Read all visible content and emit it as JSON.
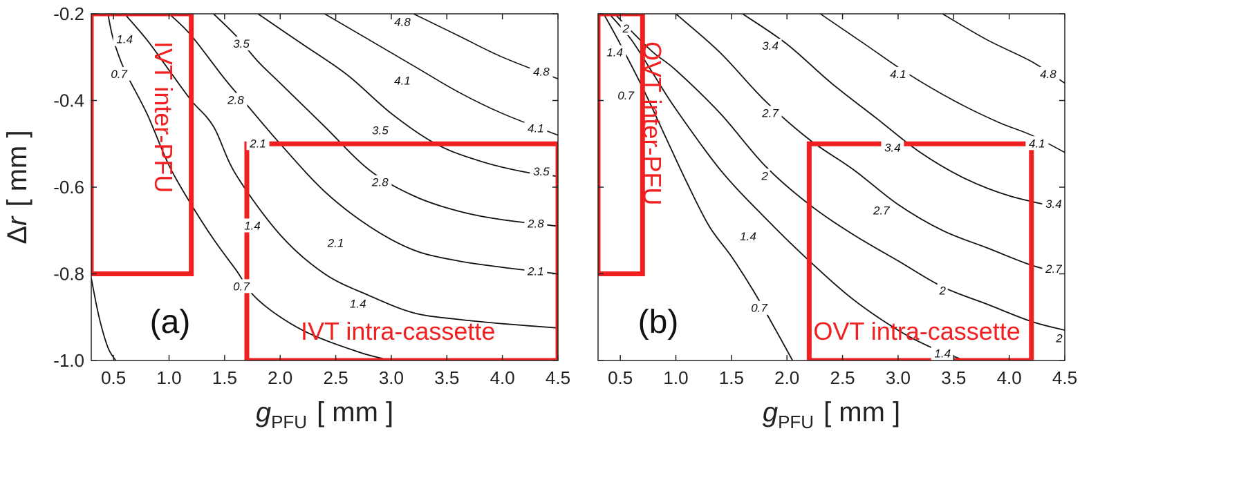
{
  "chart_data": [
    {
      "type": "contour",
      "panel_label": "(a)",
      "xlabel": {
        "symbol": "g",
        "subscript": "PFU",
        "unit": "[ mm ]"
      },
      "ylabel": {
        "symbol": "Δr",
        "unit": "[ mm ]"
      },
      "xlim": [
        0.3,
        4.5
      ],
      "ylim": [
        -1.0,
        -0.2
      ],
      "x_ticks": [
        "0.5",
        "1.0",
        "1.5",
        "2.0",
        "2.5",
        "3.0",
        "3.5",
        "4.0",
        "4.5"
      ],
      "y_ticks": [
        "-0.2",
        "-0.4",
        "-0.6",
        "-0.8",
        "-1.0"
      ],
      "contours": [
        {
          "level": "0.7",
          "points": [
            [
              0.3,
              -0.81
            ],
            [
              0.37,
              -0.9
            ],
            [
              0.45,
              -0.97
            ],
            [
              0.52,
              -1.0
            ]
          ]
        },
        {
          "level": "0.7",
          "points": [
            [
              0.45,
              -0.2
            ],
            [
              0.5,
              -0.26
            ],
            [
              0.6,
              -0.33
            ],
            [
              0.8,
              -0.43
            ],
            [
              1.0,
              -0.55
            ],
            [
              1.2,
              -0.64
            ],
            [
              1.4,
              -0.72
            ],
            [
              1.6,
              -0.79
            ],
            [
              1.8,
              -0.86
            ],
            [
              2.2,
              -0.93
            ],
            [
              2.7,
              -0.98
            ],
            [
              3.0,
              -1.0
            ]
          ]
        },
        {
          "level": "1.4",
          "points": [
            [
              0.6,
              -0.2
            ],
            [
              0.8,
              -0.26
            ],
            [
              1.0,
              -0.33
            ],
            [
              1.2,
              -0.4
            ],
            [
              1.4,
              -0.46
            ],
            [
              1.6,
              -0.57
            ],
            [
              2.0,
              -0.71
            ],
            [
              2.4,
              -0.8
            ],
            [
              2.8,
              -0.85
            ],
            [
              3.2,
              -0.89
            ],
            [
              3.6,
              -0.905
            ],
            [
              4.0,
              -0.915
            ],
            [
              4.5,
              -0.925
            ]
          ]
        },
        {
          "level": "2.1",
          "points": [
            [
              1.0,
              -0.2
            ],
            [
              1.2,
              -0.25
            ],
            [
              1.5,
              -0.35
            ],
            [
              1.7,
              -0.41
            ],
            [
              2.0,
              -0.5
            ],
            [
              2.4,
              -0.61
            ],
            [
              2.8,
              -0.69
            ],
            [
              3.2,
              -0.745
            ],
            [
              3.6,
              -0.77
            ],
            [
              4.0,
              -0.785
            ],
            [
              4.5,
              -0.8
            ]
          ]
        },
        {
          "level": "2.8",
          "points": [
            [
              1.4,
              -0.2
            ],
            [
              1.6,
              -0.25
            ],
            [
              1.8,
              -0.31
            ],
            [
              2.0,
              -0.36
            ],
            [
              2.4,
              -0.46
            ],
            [
              2.8,
              -0.56
            ],
            [
              3.2,
              -0.62
            ],
            [
              3.6,
              -0.655
            ],
            [
              4.0,
              -0.675
            ],
            [
              4.5,
              -0.69
            ]
          ]
        },
        {
          "level": "3.5",
          "points": [
            [
              1.8,
              -0.2
            ],
            [
              2.2,
              -0.27
            ],
            [
              2.6,
              -0.34
            ],
            [
              3.0,
              -0.43
            ],
            [
              3.4,
              -0.5
            ],
            [
              3.8,
              -0.54
            ],
            [
              4.2,
              -0.565
            ],
            [
              4.5,
              -0.575
            ]
          ]
        },
        {
          "level": "4.1",
          "points": [
            [
              2.4,
              -0.2
            ],
            [
              2.8,
              -0.26
            ],
            [
              3.2,
              -0.32
            ],
            [
              3.6,
              -0.38
            ],
            [
              4.0,
              -0.43
            ],
            [
              4.5,
              -0.48
            ]
          ]
        },
        {
          "level": "4.8",
          "points": [
            [
              3.2,
              -0.2
            ],
            [
              3.6,
              -0.25
            ],
            [
              4.0,
              -0.3
            ],
            [
              4.5,
              -0.35
            ]
          ]
        }
      ],
      "contour_labels": [
        {
          "text": "0.7",
          "x": 0.55,
          "y": -0.34
        },
        {
          "text": "1.4",
          "x": 0.6,
          "y": -0.26
        },
        {
          "text": "3.5",
          "x": 1.65,
          "y": -0.27
        },
        {
          "text": "4.8",
          "x": 3.1,
          "y": -0.22
        },
        {
          "text": "2.8",
          "x": 1.6,
          "y": -0.4
        },
        {
          "text": "4.1",
          "x": 3.1,
          "y": -0.355
        },
        {
          "text": "2.1",
          "x": 1.8,
          "y": -0.5
        },
        {
          "text": "3.5",
          "x": 2.9,
          "y": -0.47
        },
        {
          "text": "2.8",
          "x": 2.9,
          "y": -0.59
        },
        {
          "text": "1.4",
          "x": 1.75,
          "y": -0.69
        },
        {
          "text": "2.1",
          "x": 2.5,
          "y": -0.73
        },
        {
          "text": "0.7",
          "x": 1.65,
          "y": -0.83
        },
        {
          "text": "1.4",
          "x": 2.7,
          "y": -0.87
        },
        {
          "text": "4.8",
          "x": 4.35,
          "y": -0.335
        },
        {
          "text": "4.1",
          "x": 4.3,
          "y": -0.465
        },
        {
          "text": "3.5",
          "x": 4.35,
          "y": -0.565
        },
        {
          "text": "2.8",
          "x": 4.3,
          "y": -0.685
        },
        {
          "text": "2.1",
          "x": 4.3,
          "y": -0.795
        }
      ],
      "regions": [
        {
          "name": "IVT inter-PFU",
          "x0": 0.3,
          "x1": 1.2,
          "y0": -0.8,
          "y1": -0.2,
          "label_orientation": "vertical"
        },
        {
          "name": "IVT intra-cassette",
          "x0": 1.7,
          "x1": 4.5,
          "y0": -1.0,
          "y1": -0.5,
          "label_orientation": "horizontal"
        }
      ]
    },
    {
      "type": "contour",
      "panel_label": "(b)",
      "xlabel": {
        "symbol": "g",
        "subscript": "PFU",
        "unit": "[ mm ]"
      },
      "ylabel": {
        "symbol": "",
        "unit": ""
      },
      "xlim": [
        0.3,
        4.5
      ],
      "ylim": [
        -1.0,
        -0.2
      ],
      "x_ticks": [
        "0.5",
        "1.0",
        "1.5",
        "2.0",
        "2.5",
        "3.0",
        "3.5",
        "4.0",
        "4.5"
      ],
      "y_ticks": [],
      "contours": [
        {
          "level": "0.7",
          "points": [
            [
              0.35,
              -0.2
            ],
            [
              0.5,
              -0.27
            ],
            [
              0.7,
              -0.37
            ],
            [
              0.9,
              -0.48
            ],
            [
              1.1,
              -0.59
            ],
            [
              1.3,
              -0.69
            ],
            [
              1.5,
              -0.76
            ],
            [
              1.7,
              -0.84
            ],
            [
              1.9,
              -0.93
            ],
            [
              2.05,
              -1.0
            ]
          ]
        },
        {
          "level": "1.4",
          "points": [
            [
              0.4,
              -0.2
            ],
            [
              0.6,
              -0.26
            ],
            [
              0.8,
              -0.34
            ],
            [
              1.0,
              -0.42
            ],
            [
              1.4,
              -0.56
            ],
            [
              1.8,
              -0.67
            ],
            [
              2.2,
              -0.77
            ],
            [
              2.6,
              -0.86
            ],
            [
              3.0,
              -0.93
            ],
            [
              3.3,
              -0.97
            ],
            [
              3.6,
              -1.0
            ]
          ]
        },
        {
          "level": "2",
          "points": [
            [
              0.45,
              -0.2
            ],
            [
              0.6,
              -0.24
            ],
            [
              0.8,
              -0.29
            ],
            [
              1.0,
              -0.33
            ],
            [
              1.4,
              -0.43
            ],
            [
              1.8,
              -0.55
            ],
            [
              2.2,
              -0.64
            ],
            [
              2.6,
              -0.71
            ],
            [
              3.0,
              -0.77
            ],
            [
              3.4,
              -0.83
            ],
            [
              3.8,
              -0.87
            ],
            [
              4.2,
              -0.91
            ],
            [
              4.5,
              -0.93
            ]
          ]
        },
        {
          "level": "2.7",
          "points": [
            [
              1.0,
              -0.2
            ],
            [
              1.4,
              -0.29
            ],
            [
              1.8,
              -0.4
            ],
            [
              2.2,
              -0.49
            ],
            [
              2.6,
              -0.56
            ],
            [
              3.0,
              -0.64
            ],
            [
              3.4,
              -0.7
            ],
            [
              3.8,
              -0.74
            ],
            [
              4.2,
              -0.78
            ],
            [
              4.5,
              -0.8
            ]
          ]
        },
        {
          "level": "3.4",
          "points": [
            [
              1.6,
              -0.2
            ],
            [
              2.0,
              -0.27
            ],
            [
              2.4,
              -0.36
            ],
            [
              2.8,
              -0.44
            ],
            [
              3.2,
              -0.52
            ],
            [
              3.6,
              -0.58
            ],
            [
              4.0,
              -0.62
            ],
            [
              4.5,
              -0.65
            ]
          ]
        },
        {
          "level": "4.1",
          "points": [
            [
              2.3,
              -0.2
            ],
            [
              2.7,
              -0.27
            ],
            [
              3.1,
              -0.34
            ],
            [
              3.5,
              -0.4
            ],
            [
              3.9,
              -0.45
            ],
            [
              4.2,
              -0.48
            ],
            [
              4.5,
              -0.52
            ]
          ]
        },
        {
          "level": "4.8",
          "points": [
            [
              3.4,
              -0.2
            ],
            [
              3.8,
              -0.26
            ],
            [
              4.2,
              -0.31
            ],
            [
              4.5,
              -0.36
            ]
          ]
        }
      ],
      "contour_labels": [
        {
          "text": "2",
          "x": 0.55,
          "y": -0.235
        },
        {
          "text": "1.4",
          "x": 0.45,
          "y": -0.29
        },
        {
          "text": "0.7",
          "x": 0.55,
          "y": -0.39
        },
        {
          "text": "3.4",
          "x": 1.85,
          "y": -0.275
        },
        {
          "text": "4.1",
          "x": 3.0,
          "y": -0.34
        },
        {
          "text": "2.7",
          "x": 1.85,
          "y": -0.43
        },
        {
          "text": "2",
          "x": 1.8,
          "y": -0.575
        },
        {
          "text": "3.4",
          "x": 2.95,
          "y": -0.51
        },
        {
          "text": "2.7",
          "x": 2.85,
          "y": -0.655
        },
        {
          "text": "1.4",
          "x": 1.65,
          "y": -0.715
        },
        {
          "text": "2",
          "x": 3.4,
          "y": -0.84
        },
        {
          "text": "0.7",
          "x": 1.75,
          "y": -0.88
        },
        {
          "text": "1.4",
          "x": 3.4,
          "y": -0.985
        },
        {
          "text": "4.8",
          "x": 4.35,
          "y": -0.34
        },
        {
          "text": "4.1",
          "x": 4.25,
          "y": -0.5
        },
        {
          "text": "3.4",
          "x": 4.4,
          "y": -0.64
        },
        {
          "text": "2.7",
          "x": 4.4,
          "y": -0.79
        },
        {
          "text": "2",
          "x": 4.45,
          "y": -0.95
        }
      ],
      "regions": [
        {
          "name": "OVT inter-PFU",
          "x0": 0.3,
          "x1": 0.7,
          "y0": -0.8,
          "y1": -0.2,
          "label_orientation": "vertical"
        },
        {
          "name": "OVT intra-cassette",
          "x0": 2.2,
          "x1": 4.2,
          "y0": -1.0,
          "y1": -0.5,
          "label_orientation": "horizontal"
        }
      ]
    }
  ],
  "colors": {
    "contour": "#111111",
    "region": "#f02020",
    "axis": "#222222"
  }
}
